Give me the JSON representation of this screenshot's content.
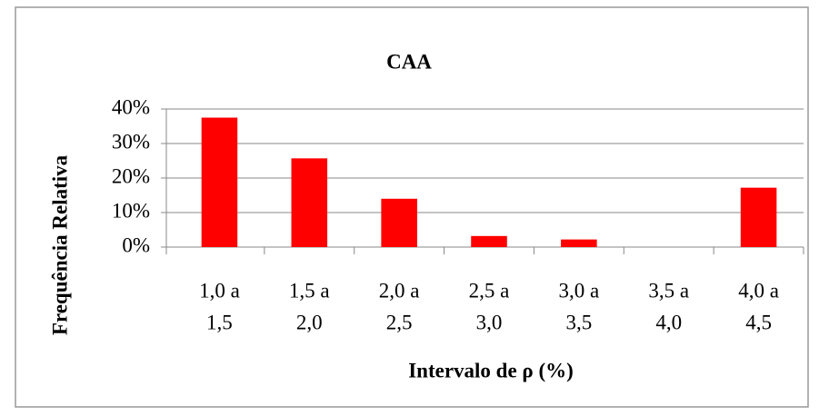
{
  "chart_data": {
    "type": "bar",
    "title": "CAA",
    "x_label": "Intervalo de ρ (%)",
    "y_label": "Frequência Relativa",
    "categories": [
      [
        "1,0 a",
        "1,5"
      ],
      [
        "1,5 a",
        "2,0"
      ],
      [
        "2,0 a",
        "2,5"
      ],
      [
        "2,5 a",
        "3,0"
      ],
      [
        "3,0 a",
        "3,5"
      ],
      [
        "3,5 a",
        "4,0"
      ],
      [
        "4,0 a",
        "4,5"
      ]
    ],
    "values": [
      37.5,
      25.7,
      14,
      3.2,
      2.2,
      0,
      17.2
    ],
    "color": "#ff0000",
    "ylim": [
      0,
      40
    ],
    "yticks": [
      {
        "value": 0,
        "label": "0%"
      },
      {
        "value": 10,
        "label": "10%"
      },
      {
        "value": 20,
        "label": "20%"
      },
      {
        "value": 30,
        "label": "30%"
      },
      {
        "value": 40,
        "label": "40%"
      }
    ],
    "grid": true
  }
}
